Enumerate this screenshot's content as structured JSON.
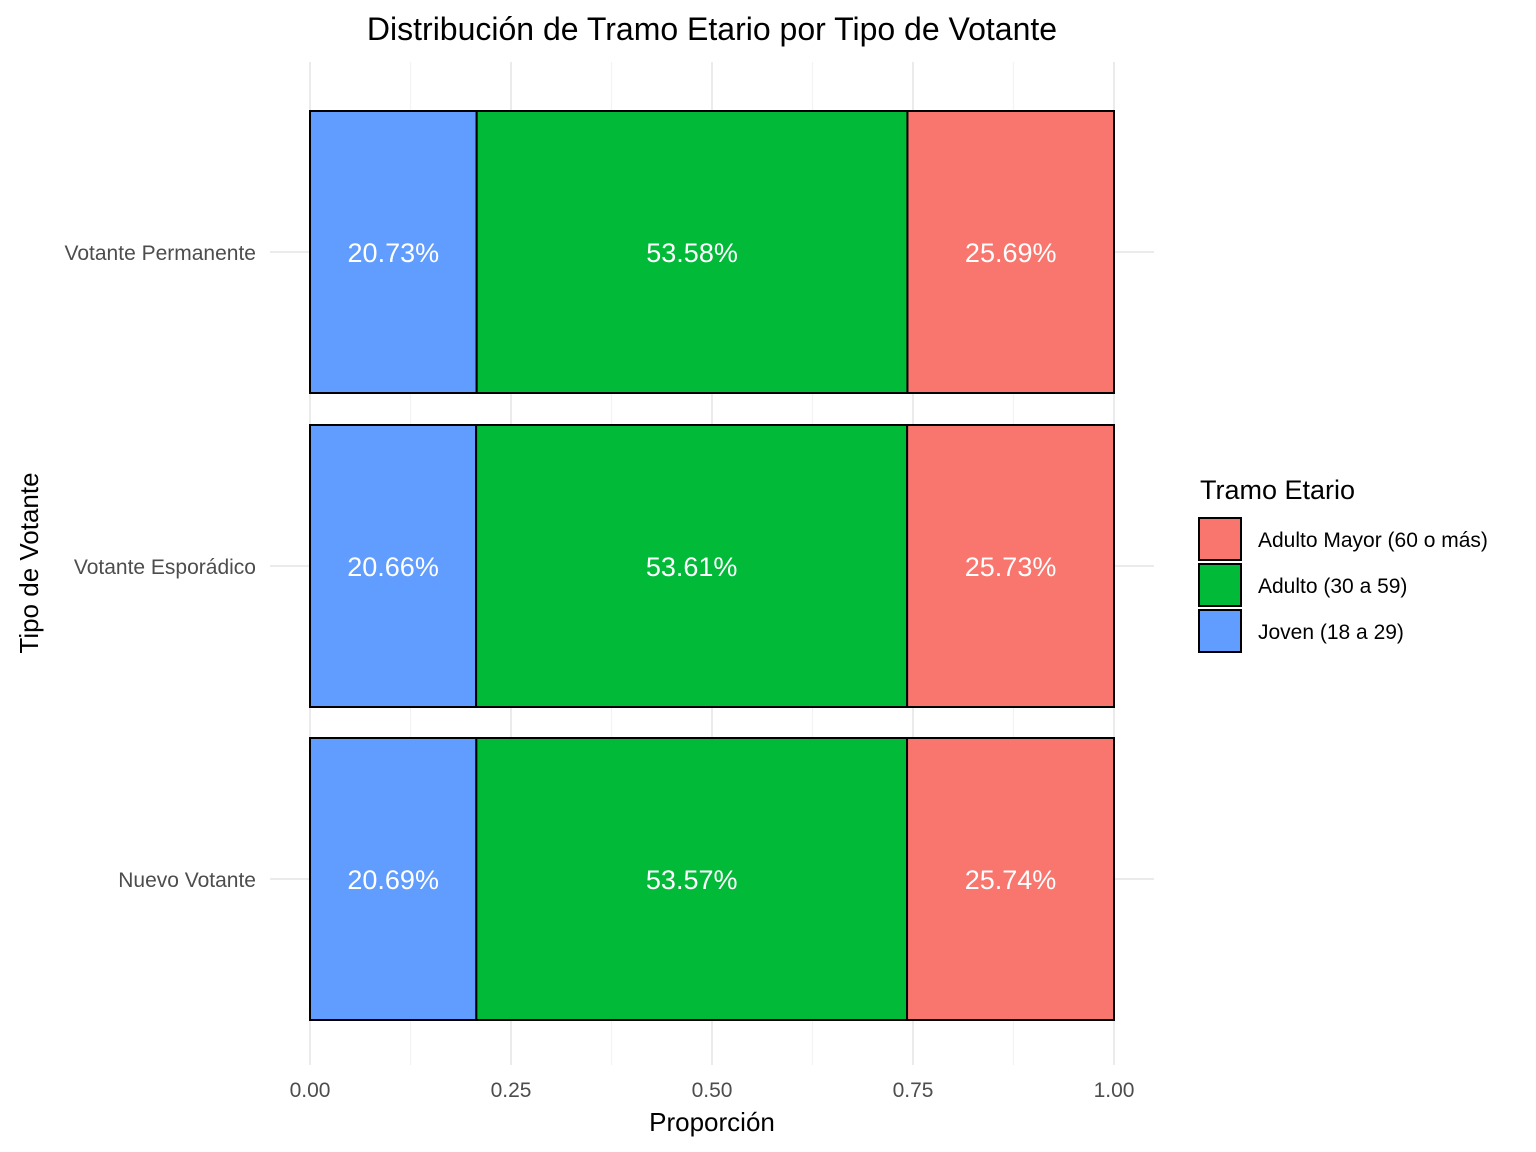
{
  "chart_data": {
    "type": "bar",
    "orientation": "horizontal",
    "stacked": true,
    "title": "Distribución de Tramo Etario por Tipo de Votante",
    "xlabel": "Proporción",
    "ylabel": "Tipo de Votante",
    "xlim": [
      0,
      1
    ],
    "x_ticks": [
      "0.00",
      "0.25",
      "0.50",
      "0.75",
      "1.00"
    ],
    "grid": true,
    "categories": [
      "Votante Permanente",
      "Votante Esporádico",
      "Nuevo Votante"
    ],
    "series": [
      {
        "name": "Joven (18 a 29)",
        "color": "#619CFF",
        "values": [
          0.2073,
          0.2066,
          0.2069
        ],
        "labels": [
          "20.73%",
          "20.66%",
          "20.69%"
        ]
      },
      {
        "name": "Adulto (30 a 59)",
        "color": "#00BA38",
        "values": [
          0.5358,
          0.5361,
          0.5357
        ],
        "labels": [
          "53.58%",
          "53.61%",
          "53.57%"
        ]
      },
      {
        "name": "Adulto Mayor (60 o más)",
        "color": "#F8766D",
        "values": [
          0.2569,
          0.2573,
          0.2574
        ],
        "labels": [
          "25.69%",
          "25.73%",
          "25.74%"
        ]
      }
    ],
    "legend": {
      "title": "Tramo Etario",
      "position": "right",
      "order": [
        "Adulto Mayor (60 o más)",
        "Adulto (30 a 59)",
        "Joven (18 a 29)"
      ]
    }
  }
}
